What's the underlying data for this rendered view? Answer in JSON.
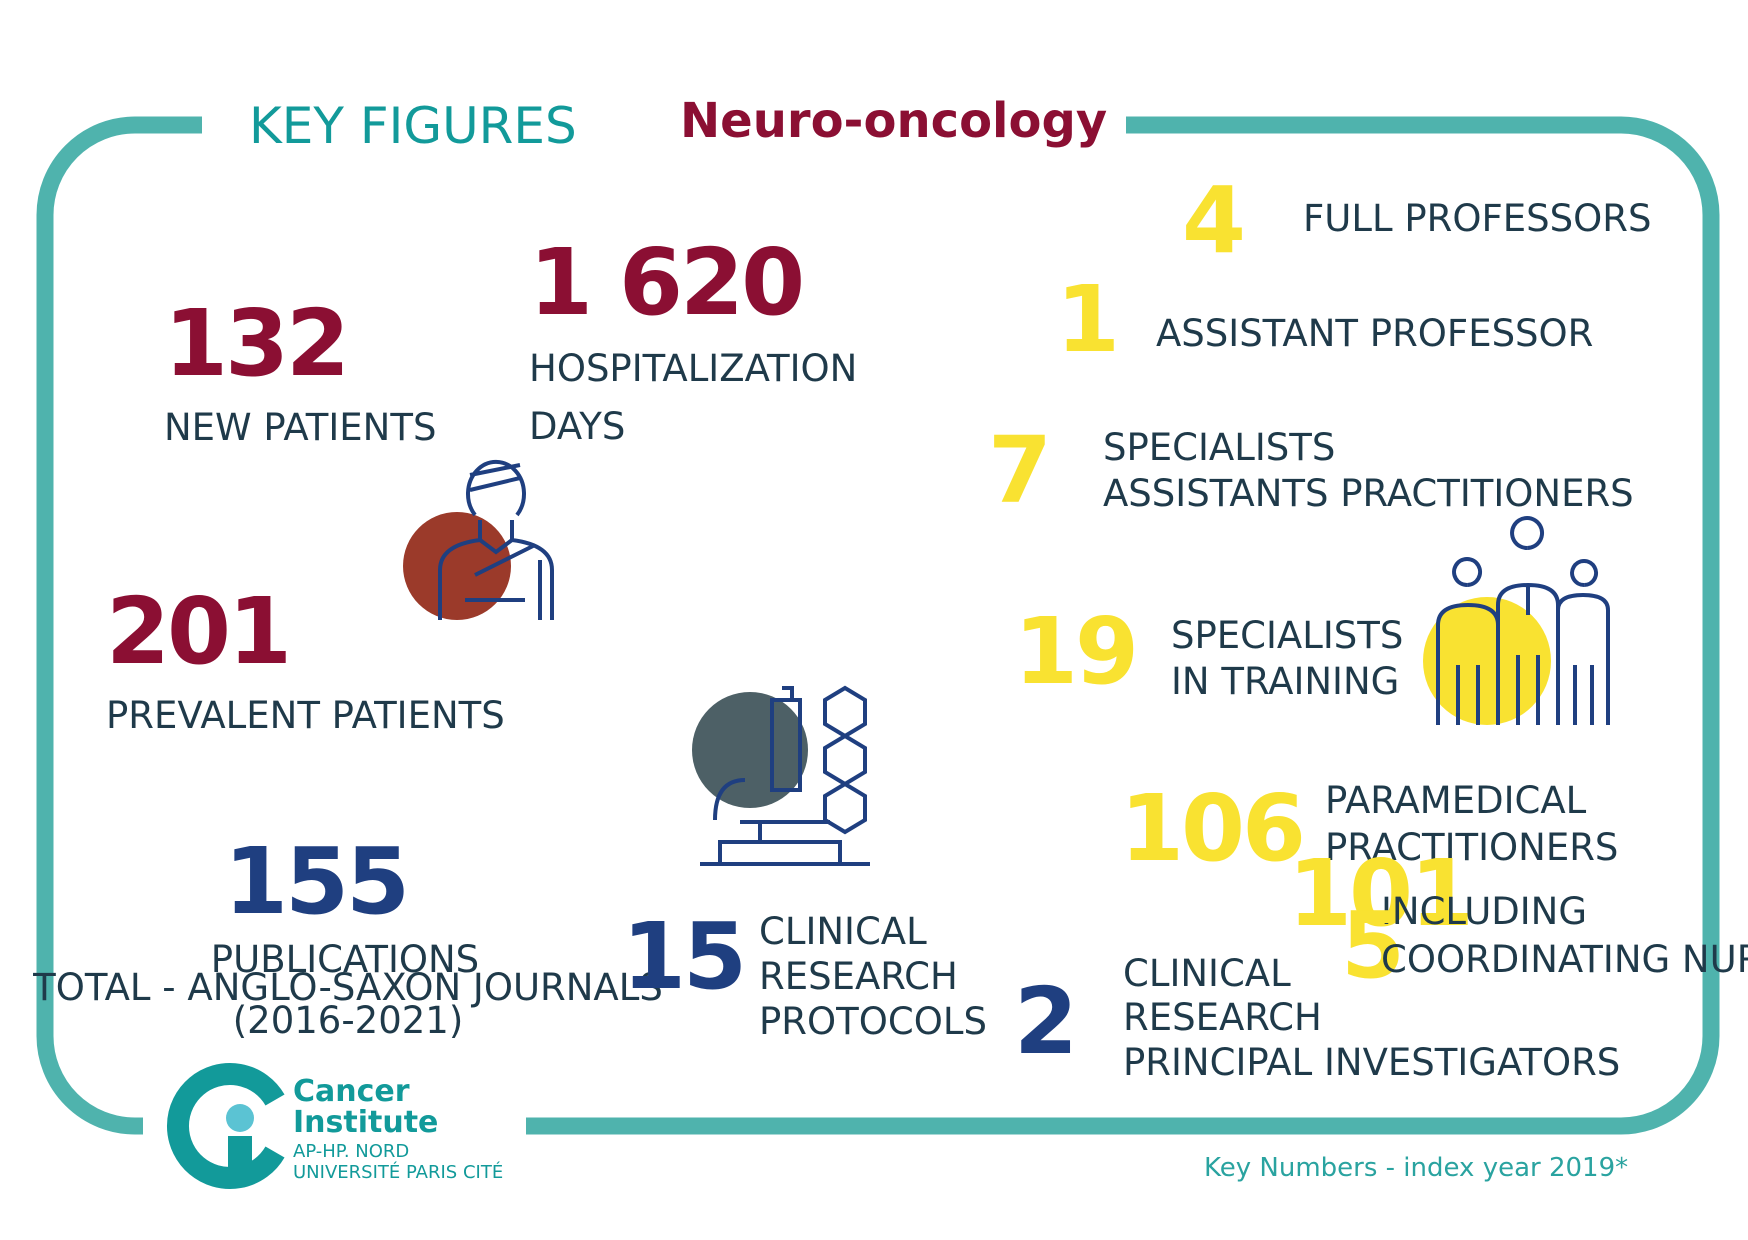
{
  "header": {
    "title": "KEY FIGURES",
    "subtitle": "Neuro-oncology"
  },
  "stats": [
    {
      "number": "132",
      "lines": [
        "NEW PATIENTS"
      ]
    },
    {
      "number": "1 620",
      "lines": [
        "HOSPITALIZATION",
        "DAYS"
      ]
    },
    {
      "number": "201",
      "lines": [
        "PREVALENT PATIENTS"
      ]
    },
    {
      "number": "155",
      "lines": [
        "PUBLICATIONS",
        "TOTAL - ANGLO-SAXON JOURNALS",
        "(2016-2021)"
      ]
    },
    {
      "number": "15",
      "lines": [
        "CLINICAL",
        "RESEARCH",
        "PROTOCOLS"
      ]
    },
    {
      "number": "4",
      "lines": [
        "FULL PROFESSORS"
      ]
    },
    {
      "number": "1",
      "lines": [
        "ASSISTANT PROFESSOR"
      ]
    },
    {
      "number": "7",
      "lines": [
        "SPECIALISTS",
        "ASSISTANTS PRACTITIONERS"
      ]
    },
    {
      "number": "19",
      "lines": [
        "SPECIALISTS",
        "IN TRAINING"
      ]
    },
    {
      "number": "106",
      "lines": [
        "PARAMEDICAL",
        "PRACTITIONERS"
      ]
    },
    {
      "number": "101",
      "lines": [
        "INCLUDING"
      ]
    },
    {
      "number": "5",
      "lines": [
        "COORDINATING NURSES"
      ]
    },
    {
      "number": "2",
      "lines": [
        "CLINICAL",
        "RESEARCH",
        "PRINCIPAL INVESTIGATORS"
      ]
    }
  ],
  "footer": "Key Numbers - index year 2019*",
  "logo": {
    "lines": [
      "Cancer",
      "Institute",
      "AP-HP. NORD",
      "UNIVERSITÉ PARIS CITÉ"
    ]
  }
}
